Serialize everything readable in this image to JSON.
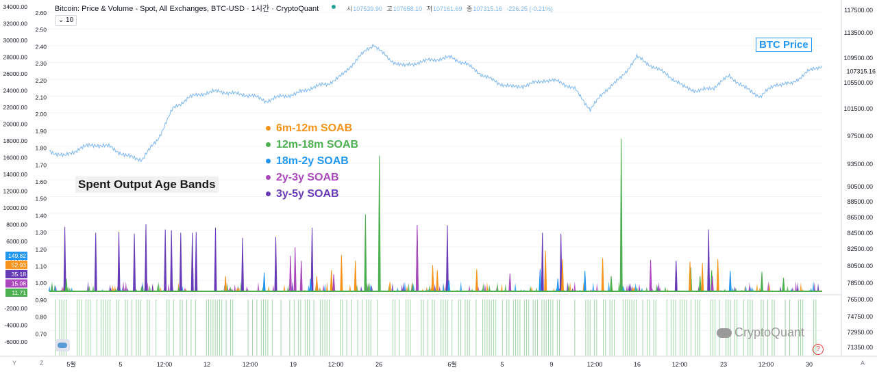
{
  "header": {
    "title": "Bitcoin: Price & Volume - Spot, All Exchanges, BTC-USD · 1시간 · CryptoQuant",
    "ohlc": [
      {
        "label": "시",
        "value": "107539.90"
      },
      {
        "label": "고",
        "value": "107658.10"
      },
      {
        "label": "저",
        "value": "107161.69"
      },
      {
        "label": "종",
        "value": "107315.16"
      },
      {
        "label": "",
        "value": "-226.25 (-0.21%)"
      }
    ],
    "collapse_label": "10"
  },
  "annotations": {
    "btc_price_label": "BTC Price",
    "bands_title": "Spent Output Age Bands",
    "watermark": "CryptoQuant",
    "help": "?"
  },
  "legend": [
    {
      "label": "6m-12m SOAB",
      "color": "#f7931a"
    },
    {
      "label": "12m-18m SOAB",
      "color": "#4caf50"
    },
    {
      "label": "18m-2y SOAB",
      "color": "#2196f3"
    },
    {
      "label": "2y-3y SOAB",
      "color": "#ab47bc"
    },
    {
      "label": "3y-5y SOAB",
      "color": "#673ab7"
    }
  ],
  "colors": {
    "price_line": "#7cb7ef",
    "price_tag": "#7cb7ef",
    "volume_pos": "#a5d6a7",
    "grid": "#f0f3fa"
  },
  "chart_data": {
    "type": "line",
    "price_series": {
      "x": [
        0,
        2,
        4,
        6,
        8,
        10,
        12,
        14,
        16,
        18,
        20,
        22,
        24,
        26,
        28,
        30,
        32,
        34,
        36,
        38,
        40,
        42,
        44,
        46,
        48,
        50,
        52,
        54,
        56,
        58,
        60,
        62,
        64,
        66,
        68,
        70,
        72,
        74,
        76,
        78,
        80,
        82,
        84,
        86,
        88,
        90,
        92,
        94,
        96,
        98,
        100
      ],
      "y": [
        95400,
        94600,
        95800,
        96300,
        95900,
        94600,
        94200,
        97000,
        101500,
        103200,
        103900,
        104200,
        103800,
        103600,
        102700,
        103400,
        103800,
        104800,
        105300,
        106800,
        109600,
        111700,
        109200,
        108200,
        108900,
        109300,
        109600,
        108500,
        106800,
        105500,
        104800,
        105200,
        105900,
        105700,
        104500,
        101400,
        104400,
        106300,
        109700,
        108200,
        106800,
        104900,
        104200,
        104800,
        106600,
        104700,
        103400,
        105300,
        105300,
        107200,
        108300
      ],
      "yaxis": {
        "ticks": [
          "117500.00",
          "113500.00",
          "109500.00",
          "105500.00",
          "101500.00",
          "97500.00",
          "93500.00",
          "90500.00",
          "88500.00",
          "86500.00",
          "84500.00",
          "82500.00",
          "80500.00",
          "78500.00",
          "76500.00",
          "74750.00",
          "72950.00",
          "71350.00"
        ]
      },
      "last_value": "107315.16"
    },
    "left_axis_ticks": [
      "34000.00",
      "32000.00",
      "30000.00",
      "28000.00",
      "26000.00",
      "24000.00",
      "22000.00",
      "20000.00",
      "18000.00",
      "16000.00",
      "14000.00",
      "12000.00",
      "10000.00",
      "8000.00",
      "6000.00",
      "4000.00",
      "2000.00",
      "0",
      "-2000.00",
      "-4000.00",
      "-6000.00"
    ],
    "inner_axis_ticks": [
      "2.60",
      "2.50",
      "2.40",
      "2.30",
      "2.20",
      "2.10",
      "2.00",
      "1.90",
      "1.80",
      "1.70",
      "1.60",
      "1.50",
      "1.40",
      "1.30",
      "1.20",
      "1.10",
      "1.00",
      "0.90",
      "0.80",
      "0.70"
    ],
    "value_tags": [
      {
        "value": "149.82",
        "color": "#2196f3"
      },
      {
        "value": "52.93",
        "color": "#f7931a"
      },
      {
        "value": "35.18",
        "color": "#673ab7"
      },
      {
        "value": "15.08",
        "color": "#ab47bc"
      },
      {
        "value": "11.71",
        "color": "#4caf50"
      }
    ],
    "x_tick_labels": [
      "5월",
      "5",
      "12:00",
      "12",
      "12:00",
      "19",
      "12:00",
      "26",
      "6월",
      "5",
      "9",
      "12:00",
      "16",
      "12:00",
      "23",
      "12:00",
      "30"
    ],
    "corner_labels": [
      "Y",
      "Z",
      "A"
    ],
    "soab_spikes": [
      {
        "band": "3y-5y SOAB",
        "x": [
          2,
          6,
          9,
          11,
          12.5,
          15,
          15.8,
          17,
          18.5,
          19,
          21.5,
          25,
          29.3,
          34,
          47.6,
          51.5,
          63.8,
          66.2,
          81.1,
          85.3
        ],
        "v": [
          7600,
          6900,
          7000,
          6800,
          7900,
          7300,
          7200,
          6900,
          6900,
          7000,
          7500,
          6300,
          6400,
          7500,
          7800,
          7800,
          6900,
          6800,
          3600,
          7300
        ]
      },
      {
        "band": "12m-18m SOAB",
        "x": [
          2.2,
          40.9,
          42.7,
          72.7,
          74,
          83,
          84.2,
          85.7,
          92.2,
          95
        ],
        "v": [
          1500,
          9100,
          16000,
          1800,
          18000,
          2800,
          1800,
          2500,
          2300,
          1600
        ]
      },
      {
        "band": "6m-12m SOAB",
        "x": [
          22.8,
          34.6,
          36.5,
          37.8,
          39.6,
          49.6,
          50.2,
          55.3,
          64.2,
          66.4,
          71.6,
          82.9,
          84.5,
          86.5
        ],
        "v": [
          1800,
          1800,
          2500,
          4300,
          3600,
          3100,
          2500,
          2600,
          4800,
          3800,
          3900,
          3500,
          3300,
          3800
        ]
      },
      {
        "band": "18m-2y SOAB",
        "x": [
          27.8,
          33.8,
          51.7,
          63.5,
          65.8,
          69.3,
          88.1
        ],
        "v": [
          2200,
          1500,
          1300,
          2600,
          1500,
          2400,
          2400
        ]
      },
      {
        "band": "2y-3y SOAB",
        "x": [
          31.2,
          31.8,
          32.6,
          36.8,
          47.6,
          59.6,
          77.8,
          85.8
        ],
        "v": [
          4200,
          5200,
          3600,
          2000,
          7800,
          2100,
          3700,
          1800
        ]
      }
    ],
    "volume_bars": {
      "density": 0.55
    }
  }
}
